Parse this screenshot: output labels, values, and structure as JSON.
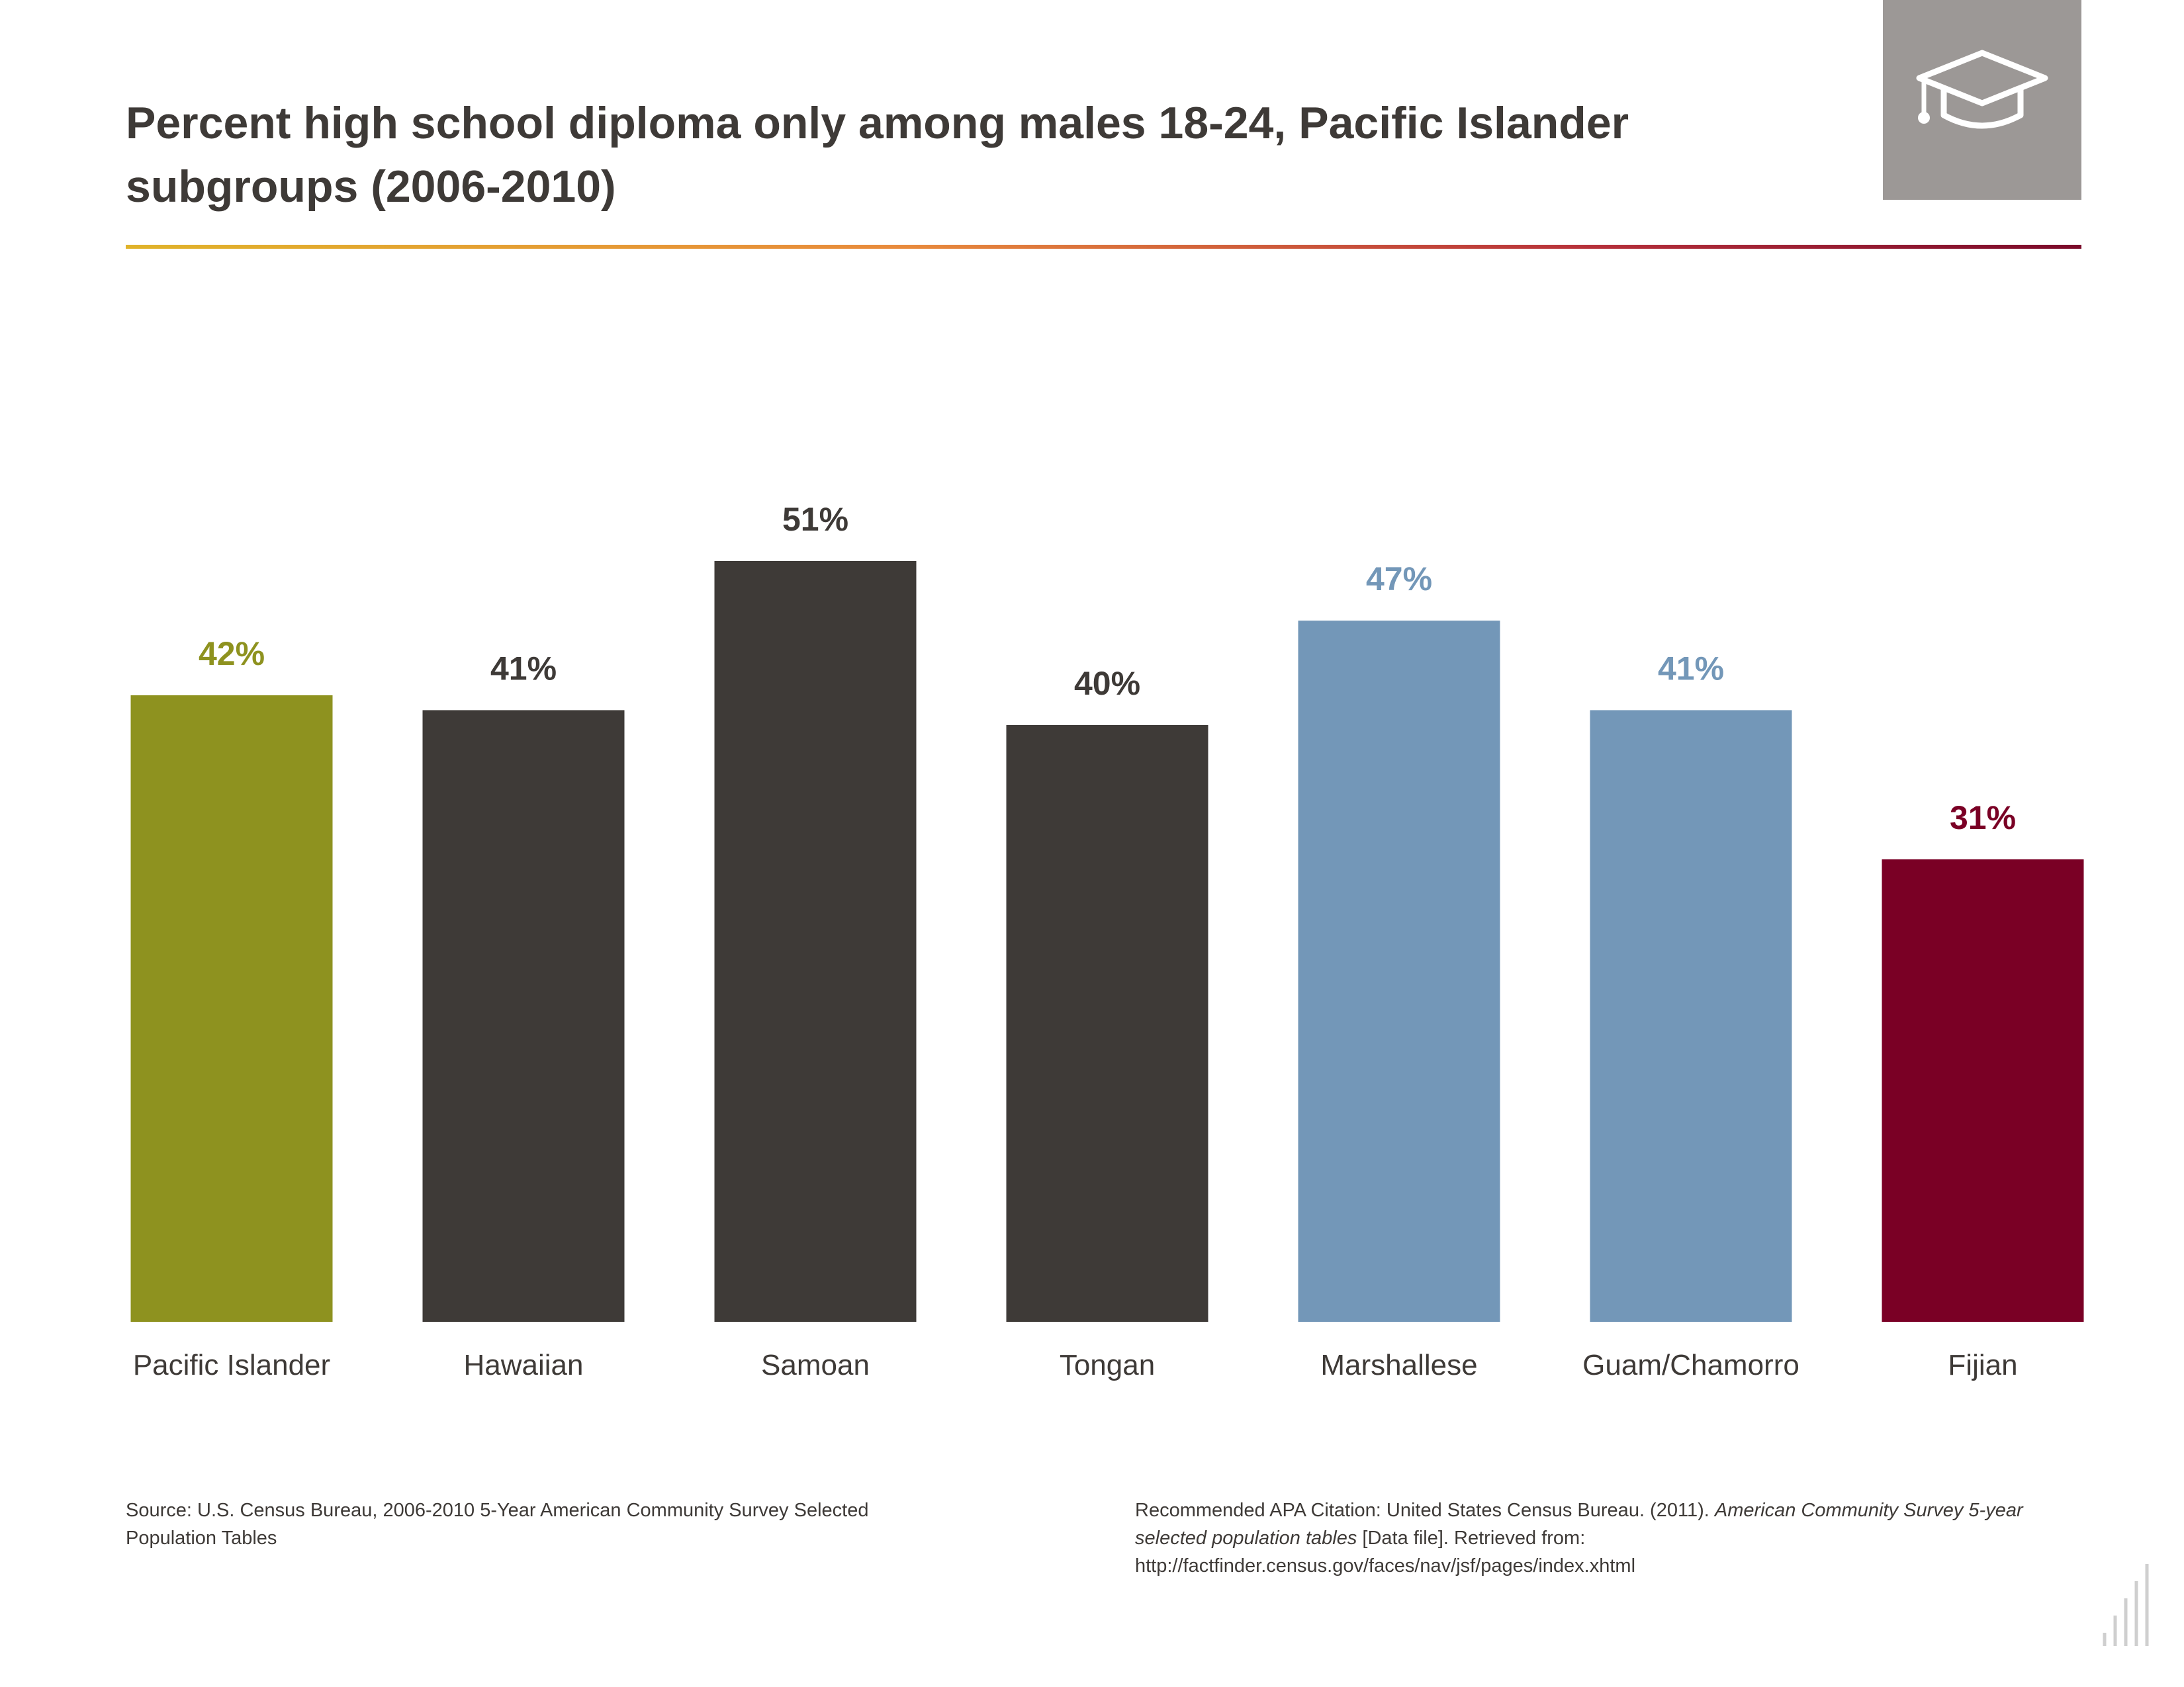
{
  "title": "Percent high school diploma only among males 18-24, Pacific Islander subgroups (2006-2010)",
  "colors": {
    "olive": "#8e921f",
    "charcoal": "#3e3a37",
    "steel_blue": "#7397b8",
    "maroon": "#7a0025",
    "badge_gray": "#9c9896"
  },
  "badge": {
    "icon": "graduation-cap-icon"
  },
  "chart_data": {
    "type": "bar",
    "categories": [
      "Pacific Islander",
      "Hawaiian",
      "Samoan",
      "Tongan",
      "Marshallese",
      "Guam/Chamorro",
      "Fijian"
    ],
    "values": [
      42,
      41,
      51,
      40,
      47,
      41,
      31
    ],
    "value_labels": [
      "42%",
      "41%",
      "51%",
      "40%",
      "47%",
      "41%",
      "31%"
    ],
    "bar_colors": [
      "#8e921f",
      "#3e3a37",
      "#3e3a37",
      "#3e3a37",
      "#7397b8",
      "#7397b8",
      "#7a0025"
    ],
    "title": "Percent high school diploma only among males 18-24, Pacific Islander subgroups (2006-2010)",
    "xlabel": "",
    "ylabel": "",
    "ylim": [
      0,
      60
    ],
    "grid": false,
    "legend": "none"
  },
  "footer": {
    "source": "Source: U.S. Census Bureau, 2006-2010 5-Year American Community Survey Selected Population Tables",
    "citation_prefix": "Recommended APA Citation: United States Census Bureau. (2011). ",
    "citation_title": "American Community Survey 5-year selected population tables",
    "citation_suffix": " [Data file]. Retrieved from: http://factfinder.census.gov/faces/nav/jsf/pages/index.xhtml"
  }
}
